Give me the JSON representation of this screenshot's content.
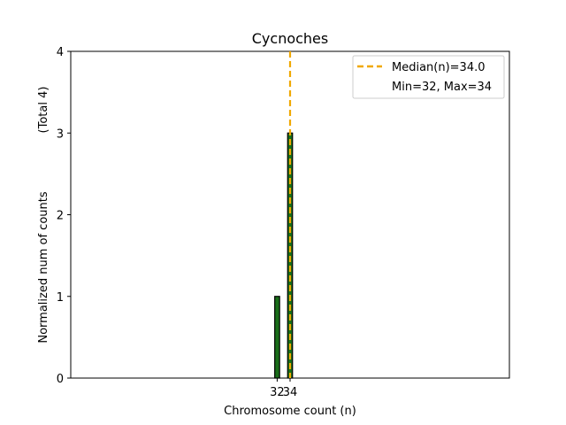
{
  "chart_data": {
    "type": "bar",
    "title": "Cycnoches",
    "xlabel": "Chromosome count (n)",
    "ylabel": "Normalized num of counts",
    "ylabel_note": "(Total 4)",
    "x": [
      32,
      34
    ],
    "values": [
      1,
      3
    ],
    "xticks": [
      "32",
      "34"
    ],
    "yticks": [
      "0",
      "1",
      "2",
      "3",
      "4"
    ],
    "xlim": [
      0,
      68
    ],
    "ylim": [
      0,
      4
    ],
    "bar_color": "#1a6e1a",
    "median_line": {
      "value": 34.0,
      "color": "#f0a800"
    },
    "legend": {
      "position": "upper right",
      "entries": [
        "Median(n)=34.0",
        "Min=32, Max=34"
      ]
    }
  }
}
